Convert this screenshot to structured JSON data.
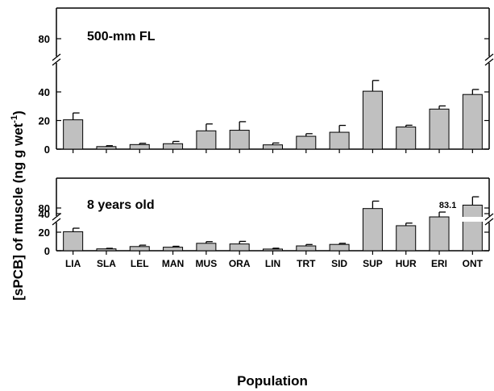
{
  "chart_data": {
    "type": "bar",
    "xlabel": "Population",
    "ylabel": "[sPCB] of muscle (ng g wet",
    "ylabel_superscript": "-1",
    "ylabel_close": ")",
    "categories": [
      "LIA",
      "SLA",
      "LEL",
      "MAN",
      "MUS",
      "ORA",
      "LIN",
      "TRT",
      "SID",
      "SUP",
      "HUR",
      "ERI",
      "ONT"
    ],
    "bar_color": "#c0c0c0",
    "panels": [
      {
        "title": "500-mm FL",
        "values": [
          20.5,
          1.8,
          3.2,
          3.8,
          12.8,
          13.2,
          3.0,
          9.0,
          11.8,
          40.5,
          15.5,
          28.0,
          38.2
        ],
        "errors": [
          4.8,
          0.6,
          0.9,
          1.6,
          4.8,
          6.0,
          1.3,
          1.8,
          4.8,
          7.5,
          1.2,
          2.2,
          3.5
        ],
        "lower_ticks": [
          0,
          20,
          40
        ],
        "upper_ticks": [
          80
        ],
        "annotation": null
      },
      {
        "title": "8 years old",
        "values": [
          20.5,
          2.0,
          4.5,
          3.8,
          8.0,
          7.3,
          1.8,
          5.2,
          6.8,
          45.5,
          27.0,
          36.5,
          83.1
        ],
        "errors": [
          3.8,
          0.6,
          1.5,
          1.0,
          1.8,
          2.8,
          0.9,
          1.5,
          1.2,
          8.0,
          2.8,
          5.2,
          9.0
        ],
        "lower_ticks": [
          0,
          20,
          40
        ],
        "upper_ticks": [
          80
        ],
        "annotation": "83.1"
      }
    ],
    "axis_break": {
      "lower_range": [
        0,
        55
      ],
      "upper_range": [
        70,
        90
      ]
    }
  }
}
